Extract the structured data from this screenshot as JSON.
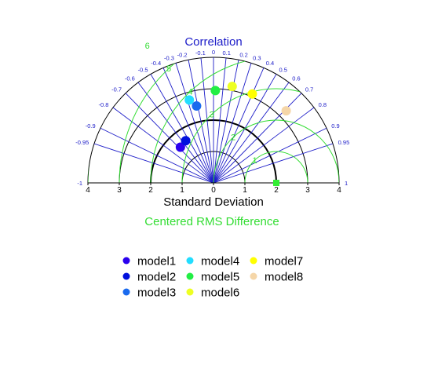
{
  "chart_data": {
    "type": "scatter",
    "subtype": "taylor-diagram",
    "title": "Correlation",
    "xlabel": "Standard Deviation",
    "rms_label": "Centered RMS Difference",
    "xlim": [
      -4,
      4
    ],
    "x_ticks": [
      "4",
      "3",
      "2",
      "1",
      "0",
      "1",
      "2",
      "3",
      "4"
    ],
    "correlation_ticks": [
      "-1",
      "-0.95",
      "-0.9",
      "-0.8",
      "-0.7",
      "-0.6",
      "-0.5",
      "-0.4",
      "-0.3",
      "-0.2",
      "-0.1",
      "0",
      "0.1",
      "0.2",
      "0.3",
      "0.4",
      "0.5",
      "0.6",
      "0.7",
      "0.8",
      "0.9",
      "0.95",
      "1"
    ],
    "std_circles": [
      1,
      2,
      3,
      4
    ],
    "reference_std": 2,
    "rms_circle_labels": [
      {
        "label": "1",
        "value": 1
      },
      {
        "label": "2",
        "value": 2
      },
      {
        "label": "3",
        "value": 3
      },
      {
        "label": "4",
        "value": 4
      },
      {
        "label": "5",
        "value": 5
      },
      {
        "label": "6",
        "value": 6
      }
    ],
    "reference_point": {
      "std": 2,
      "correlation": 1,
      "color": "#33ee33"
    },
    "series": [
      {
        "name": "model1",
        "std": 1.55,
        "correlation": -0.68,
        "color": "#2a00ee"
      },
      {
        "name": "model2",
        "std": 1.61,
        "correlation": -0.55,
        "color": "#0010dd"
      },
      {
        "name": "model3",
        "std": 2.51,
        "correlation": -0.215,
        "color": "#1a6aee"
      },
      {
        "name": "model4",
        "std": 2.75,
        "correlation": -0.28,
        "color": "#22ddff"
      },
      {
        "name": "model5",
        "std": 2.94,
        "correlation": 0.02,
        "color": "#22ee44"
      },
      {
        "name": "model6",
        "std": 3.13,
        "correlation": 0.19,
        "color": "#eeff22"
      },
      {
        "name": "model7",
        "std": 3.09,
        "correlation": 0.4,
        "color": "#ffff00"
      },
      {
        "name": "model8",
        "std": 3.26,
        "correlation": 0.71,
        "color": "#f5d6a8"
      }
    ],
    "colors": {
      "correlation": "#1c1cc8",
      "rms": "#33dd33",
      "axis": "#000000"
    },
    "legend": {
      "position": "bottom",
      "columns": 3
    }
  }
}
